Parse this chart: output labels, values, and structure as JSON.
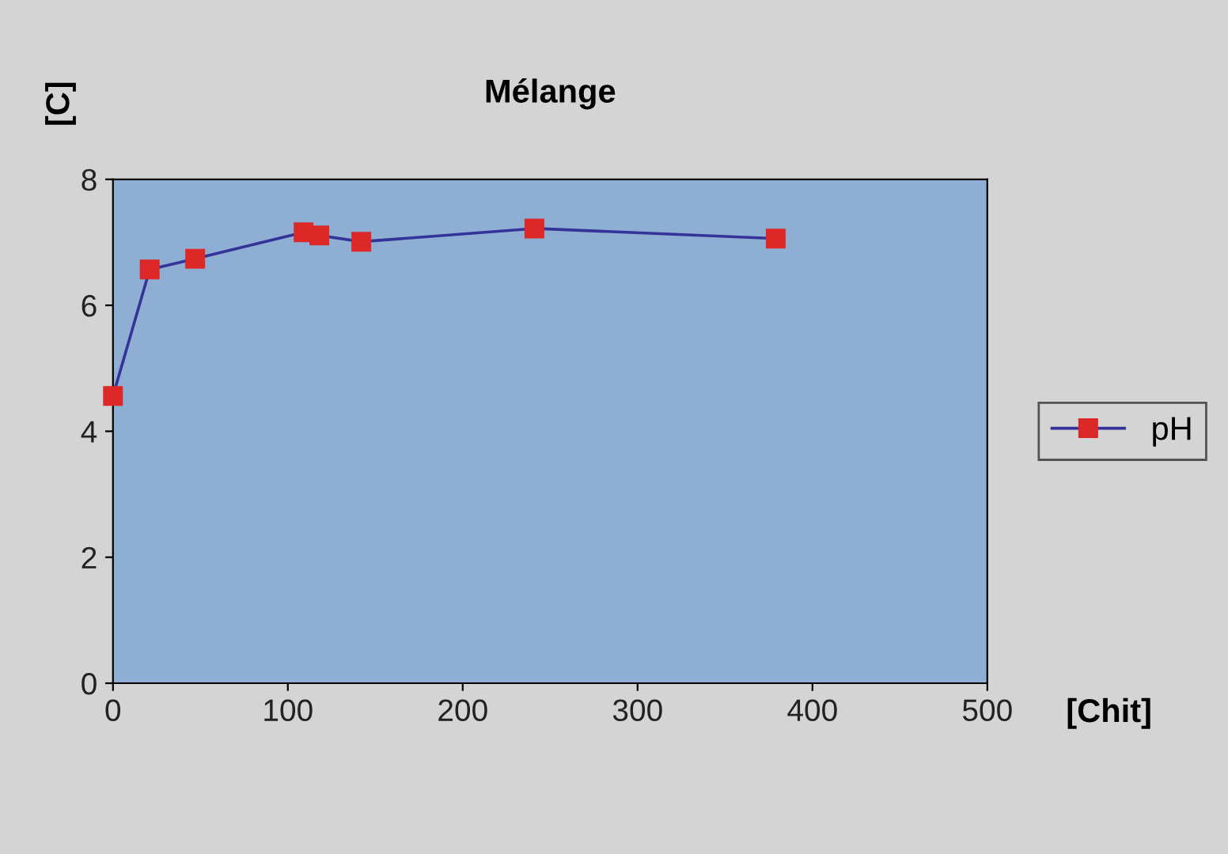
{
  "chart_data": {
    "type": "line",
    "title": "Mélange",
    "xlabel": "[Chit]",
    "ylabel": "[C]",
    "x": [
      0,
      21,
      47,
      109,
      118,
      142,
      241,
      379
    ],
    "series": [
      {
        "name": "pH",
        "color": "#333399",
        "values": [
          4.56,
          6.57,
          6.74,
          7.16,
          7.11,
          7.01,
          7.22,
          7.06
        ]
      }
    ],
    "marker": "square",
    "line_style": "solid",
    "xlim": [
      0,
      500
    ],
    "xticks": [
      0,
      100,
      200,
      300,
      400,
      500
    ],
    "ylim": [
      0,
      8
    ],
    "yticks": [
      0,
      2,
      4,
      6,
      8
    ],
    "grid": false,
    "legend": "right"
  }
}
